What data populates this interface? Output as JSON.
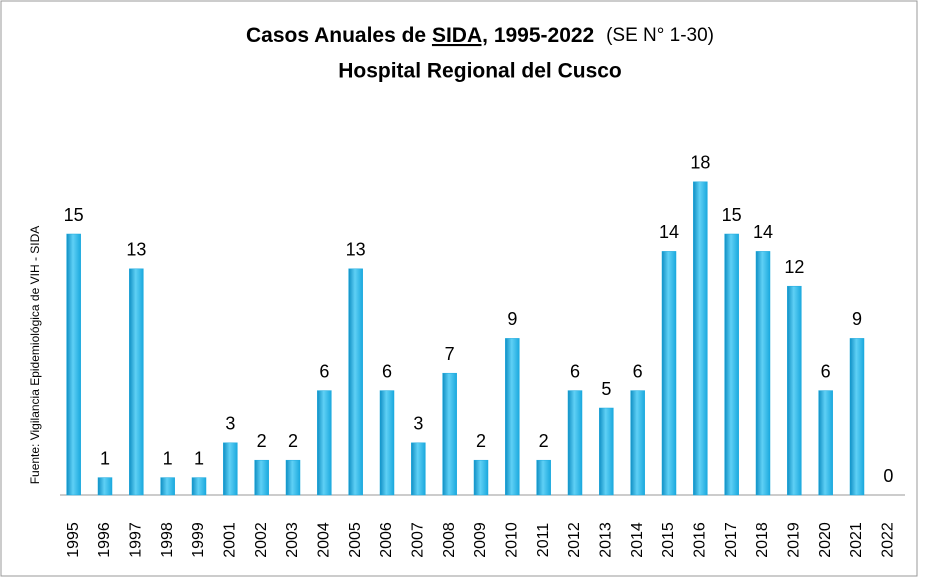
{
  "chart_data": {
    "type": "bar",
    "title_parts": [
      "Casos Anuales de",
      "SIDA,",
      "1995-2022",
      "(SE N° 1-30)"
    ],
    "subtitle": "Hospital Regional del Cusco",
    "source": "Fuente: Vigilancia Epidemiológica de VIH - SIDA",
    "categories": [
      "1995",
      "1996",
      "1997",
      "1998",
      "1999",
      "2001",
      "2002",
      "2003",
      "2004",
      "2005",
      "2006",
      "2007",
      "2008",
      "2009",
      "2010",
      "2011",
      "2012",
      "2013",
      "2014",
      "2015",
      "2016",
      "2017",
      "2018",
      "2019",
      "2020",
      "2021",
      "2022"
    ],
    "values": [
      15,
      1,
      13,
      1,
      1,
      3,
      2,
      2,
      6,
      13,
      6,
      3,
      7,
      2,
      9,
      2,
      6,
      5,
      6,
      14,
      18,
      15,
      14,
      12,
      6,
      9,
      0
    ],
    "color": "#1ba9de",
    "ylim": [
      0,
      20
    ]
  }
}
